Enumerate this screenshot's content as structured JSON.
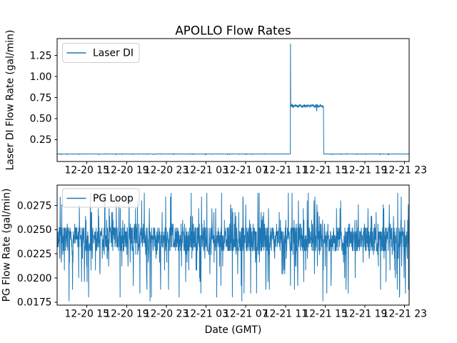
{
  "window": {
    "background": "#ffffff"
  },
  "figure": {
    "title": "APOLLO Flow Rates",
    "accent_color": "#1f77b4",
    "text_color": "#000000",
    "spine_color": "#000000",
    "legend_border_color": "#cccccc"
  },
  "chart_data": [
    {
      "type": "line",
      "title": "APOLLO Flow Rates",
      "xlabel": "",
      "ylabel": "Laser DI Flow Rate (gal/min)",
      "legend_position": "upper left",
      "grid": false,
      "legend": [
        {
          "label": "Laser DI",
          "color": "#1f77b4"
        }
      ],
      "x_tick_labels": [
        "12-20 15",
        "12-20 19",
        "12-20 23",
        "12-21 03",
        "12-21 07",
        "12-21 11",
        "12-21 15",
        "12-21 19",
        "12-21 23"
      ],
      "x_tick_hours": [
        3,
        7,
        11,
        15,
        19,
        23,
        27,
        31,
        35
      ],
      "x_unit": "hours after 12-20 12:00 (GMT)",
      "xlim_hours": [
        0,
        35.45
      ],
      "y_tick_labels": [
        "0.25",
        "0.50",
        "0.75",
        "1.00",
        "1.25"
      ],
      "y_tick_values": [
        0.25,
        0.5,
        0.75,
        1.0,
        1.25
      ],
      "ylim": [
        -0.01,
        1.45
      ],
      "series": [
        {
          "name": "Laser DI",
          "color": "#1f77b4",
          "pattern": "flat baseline ~0.08 gal/min; sharp spike to ~1.39 at 12-21 ~11:30; noisy plateau ~0.65 with brief dip to ~0.59 near 12-21 ~14:10; returns to baseline at 12-21 ~15:00",
          "profile": {
            "baseline": 0.0795,
            "baseline_noise": 0.004,
            "spike_hour": 23.5,
            "spike_peak": 1.39,
            "high_level": 0.652,
            "high_noise": 0.026,
            "high_start_hour": 23.52,
            "high_end_hour": 26.82,
            "dip_value": 0.585,
            "dip_hour": 26.14
          },
          "key_points_hours_value": [
            [
              0,
              0.08
            ],
            [
              23.45,
              0.08
            ],
            [
              23.5,
              1.39
            ],
            [
              23.55,
              0.65
            ],
            [
              26.8,
              0.65
            ],
            [
              26.85,
              0.08
            ],
            [
              35.45,
              0.08
            ]
          ]
        }
      ]
    },
    {
      "type": "line",
      "title": "",
      "xlabel": "Date (GMT)",
      "ylabel": "PG Flow Rate (gal/min)",
      "legend_position": "upper left",
      "grid": false,
      "legend": [
        {
          "label": "PG Loop",
          "color": "#1f77b4"
        }
      ],
      "x_tick_labels": [
        "12-20 15",
        "12-20 19",
        "12-20 23",
        "12-21 03",
        "12-21 07",
        "12-21 11",
        "12-21 15",
        "12-21 19",
        "12-21 23"
      ],
      "x_tick_hours": [
        3,
        7,
        11,
        15,
        19,
        23,
        27,
        31,
        35
      ],
      "x_unit": "hours after 12-20 12:00 (GMT)",
      "xlim_hours": [
        0,
        35.45
      ],
      "y_tick_labels": [
        "0.0175",
        "0.0200",
        "0.0225",
        "0.0250",
        "0.0275"
      ],
      "y_tick_values": [
        0.0175,
        0.02,
        0.0225,
        0.025,
        0.0275
      ],
      "ylim": [
        0.0172,
        0.0296
      ],
      "series": [
        {
          "name": "PG Loop",
          "color": "#1f77b4",
          "pattern": "dense quantized noise across the entire time range: solid core band ~0.0228-0.0252 with frequent upward spikes to ~0.026-0.0288 and downward spikes to ~0.018-0.0224",
          "noise_model": {
            "core_band": [
              0.0228,
              0.0252
            ],
            "quantize_step": 0.0004,
            "spike_up_max": 0.0288,
            "spike_down_min": 0.0179,
            "spike_up_prob": 0.09,
            "spike_down_prob": 0.09
          }
        }
      ]
    }
  ]
}
